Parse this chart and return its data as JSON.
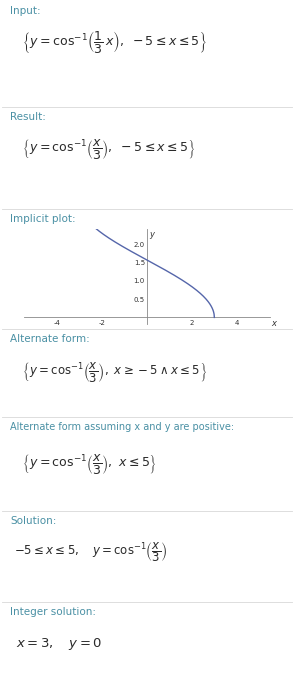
{
  "bg_color": "#ffffff",
  "text_color": "#2a2a2a",
  "label_color": "#4a90a4",
  "divider_color": "#d8d8d8",
  "curve_color": "#5566aa",
  "fig_width": 2.94,
  "fig_height": 6.99,
  "dpi": 100,
  "sections": [
    {
      "label": "Input:",
      "math": "\\left\\{y = \\cos^{-1}\\!\\left(\\frac{1}{3}\\,x\\right),\\ -5 \\leq x \\leq 5\\right\\}"
    },
    {
      "label": "Result:",
      "math": "\\left\\{y = \\cos^{-1}\\!\\left(\\frac{x}{3}\\right),\\ -5 \\leq x \\leq 5\\right\\}"
    },
    {
      "label": "Implicit plot:",
      "type": "plot"
    },
    {
      "label": "Alternate form:",
      "math": "\\left\\{y = \\cos^{-1}\\!\\left(\\frac{x}{3}\\right),\\ x \\geq -5 \\wedge x \\leq 5\\right\\}"
    },
    {
      "label": "Alternate form assuming x and y are positive:",
      "math": "\\left\\{y = \\cos^{-1}\\!\\left(\\frac{x}{3}\\right),\\ x \\leq 5\\right\\}"
    },
    {
      "label": "Solution:",
      "math": "-5 \\leq x \\leq 5,\\quad y = \\cos^{-1}\\!\\left(\\frac{x}{3}\\right)"
    },
    {
      "label": "Integer solution:",
      "math": "x = 3,\\quad y = 0"
    }
  ],
  "plot_xlim": [
    -5.5,
    5.5
  ],
  "plot_ylim": [
    -0.18,
    2.42
  ],
  "plot_xticks": [
    -4,
    -2,
    2,
    4
  ],
  "plot_yticks": [
    0.5,
    1.0,
    1.5,
    2.0
  ],
  "plot_xtick_labels": [
    "-4",
    "-2",
    "2",
    "4"
  ],
  "plot_ytick_labels": [
    "0.5",
    "1.0",
    "1.5",
    "2.0"
  ]
}
